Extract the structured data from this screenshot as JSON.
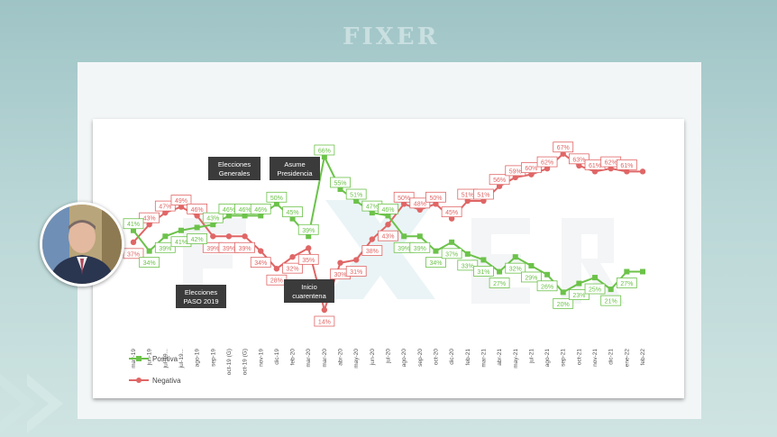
{
  "header": {
    "logo_text": "FIXER"
  },
  "chart_data": {
    "type": "line",
    "categories": [
      "may-19",
      "jun-19",
      "jul-19",
      "jul-19",
      "ago-19",
      "sep-19",
      "oct-19 (G)",
      "oct-19 (G)",
      "nov-19",
      "dic-19",
      "feb-20",
      "mar-20",
      "mar-20",
      "abr-20",
      "may-20",
      "jun-20",
      "jul-20",
      "ago-20",
      "sep-20",
      "oct-20",
      "dic-20",
      "feb-21",
      "mar-21",
      "abr-21",
      "may-21",
      "jul-21",
      "ago-21",
      "sep-21",
      "oct-21",
      "nov-21",
      "dic-21",
      "ene-22",
      "feb-22"
    ],
    "tick_labels": [
      "may-19",
      "jun-19",
      "jul-19...",
      "jul-19...",
      "ago-19",
      "sep-19",
      "oct-19 (G)",
      "oct-19 (G)",
      "nov-19",
      "dic-19",
      "feb-20",
      "mar-20",
      "mar-20",
      "abr-20",
      "may-20",
      "jun-20",
      "jul-20",
      "ago-20",
      "sep-20",
      "oct-20",
      "dic-20",
      "feb-21",
      "mar-21",
      "abr-21",
      "may-21",
      "jul-21",
      "ago-21",
      "sep-21",
      "oct-21",
      "nov-21",
      "dic-21",
      "ene-22",
      "feb-22"
    ],
    "series": [
      {
        "name": "Positiva",
        "color": "#6cc24a",
        "values": [
          41,
          34,
          39,
          41,
          42,
          43,
          46,
          46,
          46,
          50,
          45,
          39,
          66,
          55,
          51,
          47,
          46,
          39,
          39,
          34,
          37,
          33,
          31,
          27,
          32,
          29,
          26,
          20,
          23,
          25,
          21,
          27,
          27
        ],
        "labels": [
          "41%",
          "34%",
          "39%",
          "41%",
          "42%",
          "43%",
          "46%",
          "46%",
          "46%",
          "50%",
          "45%",
          "39%",
          "66%",
          "55%",
          "51%",
          "47%",
          "46%",
          "39%",
          "39%",
          "34%",
          "37%",
          "33%",
          "31%",
          "27%",
          "32%",
          "29%",
          "26%",
          "20%",
          "23%",
          "25%",
          "21%",
          "27%",
          ""
        ]
      },
      {
        "name": "Negativa",
        "color": "#e06666",
        "values": [
          37,
          43,
          47,
          49,
          46,
          39,
          39,
          39,
          34,
          28,
          32,
          35,
          14,
          30,
          31,
          38,
          43,
          50,
          48,
          50,
          45,
          51,
          51,
          56,
          59,
          60,
          62,
          67,
          63,
          61,
          62,
          61,
          61
        ],
        "labels": [
          "37%",
          "43%",
          "47%",
          "49%",
          "46%",
          "39%",
          "39%",
          "39%",
          "34%",
          "28%",
          "32%",
          "35%",
          "14%",
          "30%",
          "31%",
          "38%",
          "43%",
          "50%",
          "48%",
          "50%",
          "45%",
          "51%",
          "51%",
          "56%",
          "59%",
          "60%",
          "62%",
          "67%",
          "63%",
          "61%",
          "62%",
          "61%",
          ""
        ]
      }
    ],
    "annotations": [
      {
        "line1": "Elecciones",
        "line2": "Generales"
      },
      {
        "line1": "Asume",
        "line2": "Presidencia"
      },
      {
        "line1": "Elecciones",
        "line2": "PASO 2019"
      },
      {
        "line1": "Inicio",
        "line2": "cuarentena"
      }
    ],
    "legend": [
      "Positiva",
      "Negativa"
    ],
    "legend_position": "bottom-left",
    "grid": false
  }
}
